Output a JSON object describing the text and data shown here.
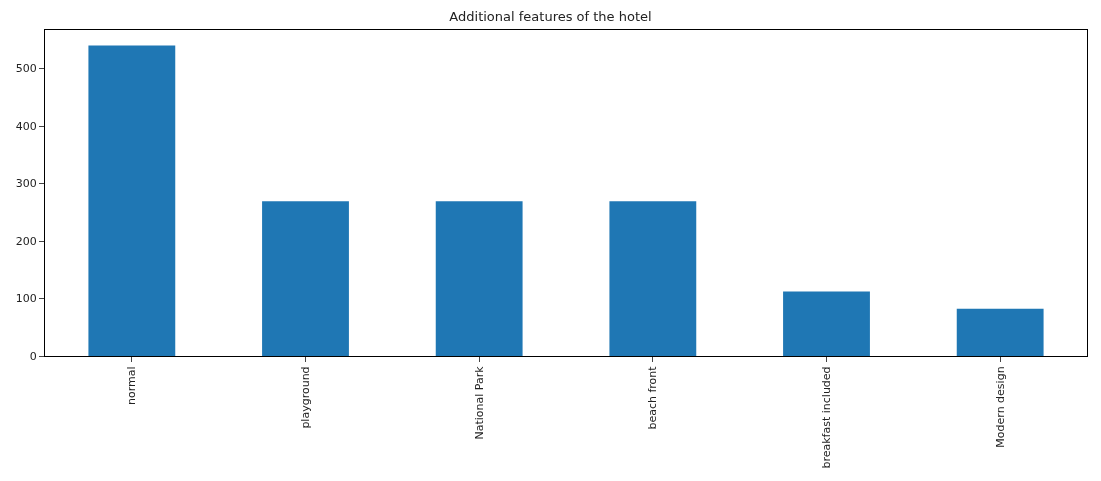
{
  "chart_data": {
    "type": "bar",
    "title": "Additional features of the hotel",
    "categories": [
      "normal",
      "playground",
      "National Park",
      "beach front",
      "breakfast included",
      "Modern design"
    ],
    "values": [
      540,
      269,
      269,
      269,
      112,
      82
    ],
    "color": "#1f77b4",
    "ylim": [
      0,
      567
    ],
    "yticks": [
      0,
      100,
      200,
      300,
      400,
      500
    ],
    "legend": false
  }
}
